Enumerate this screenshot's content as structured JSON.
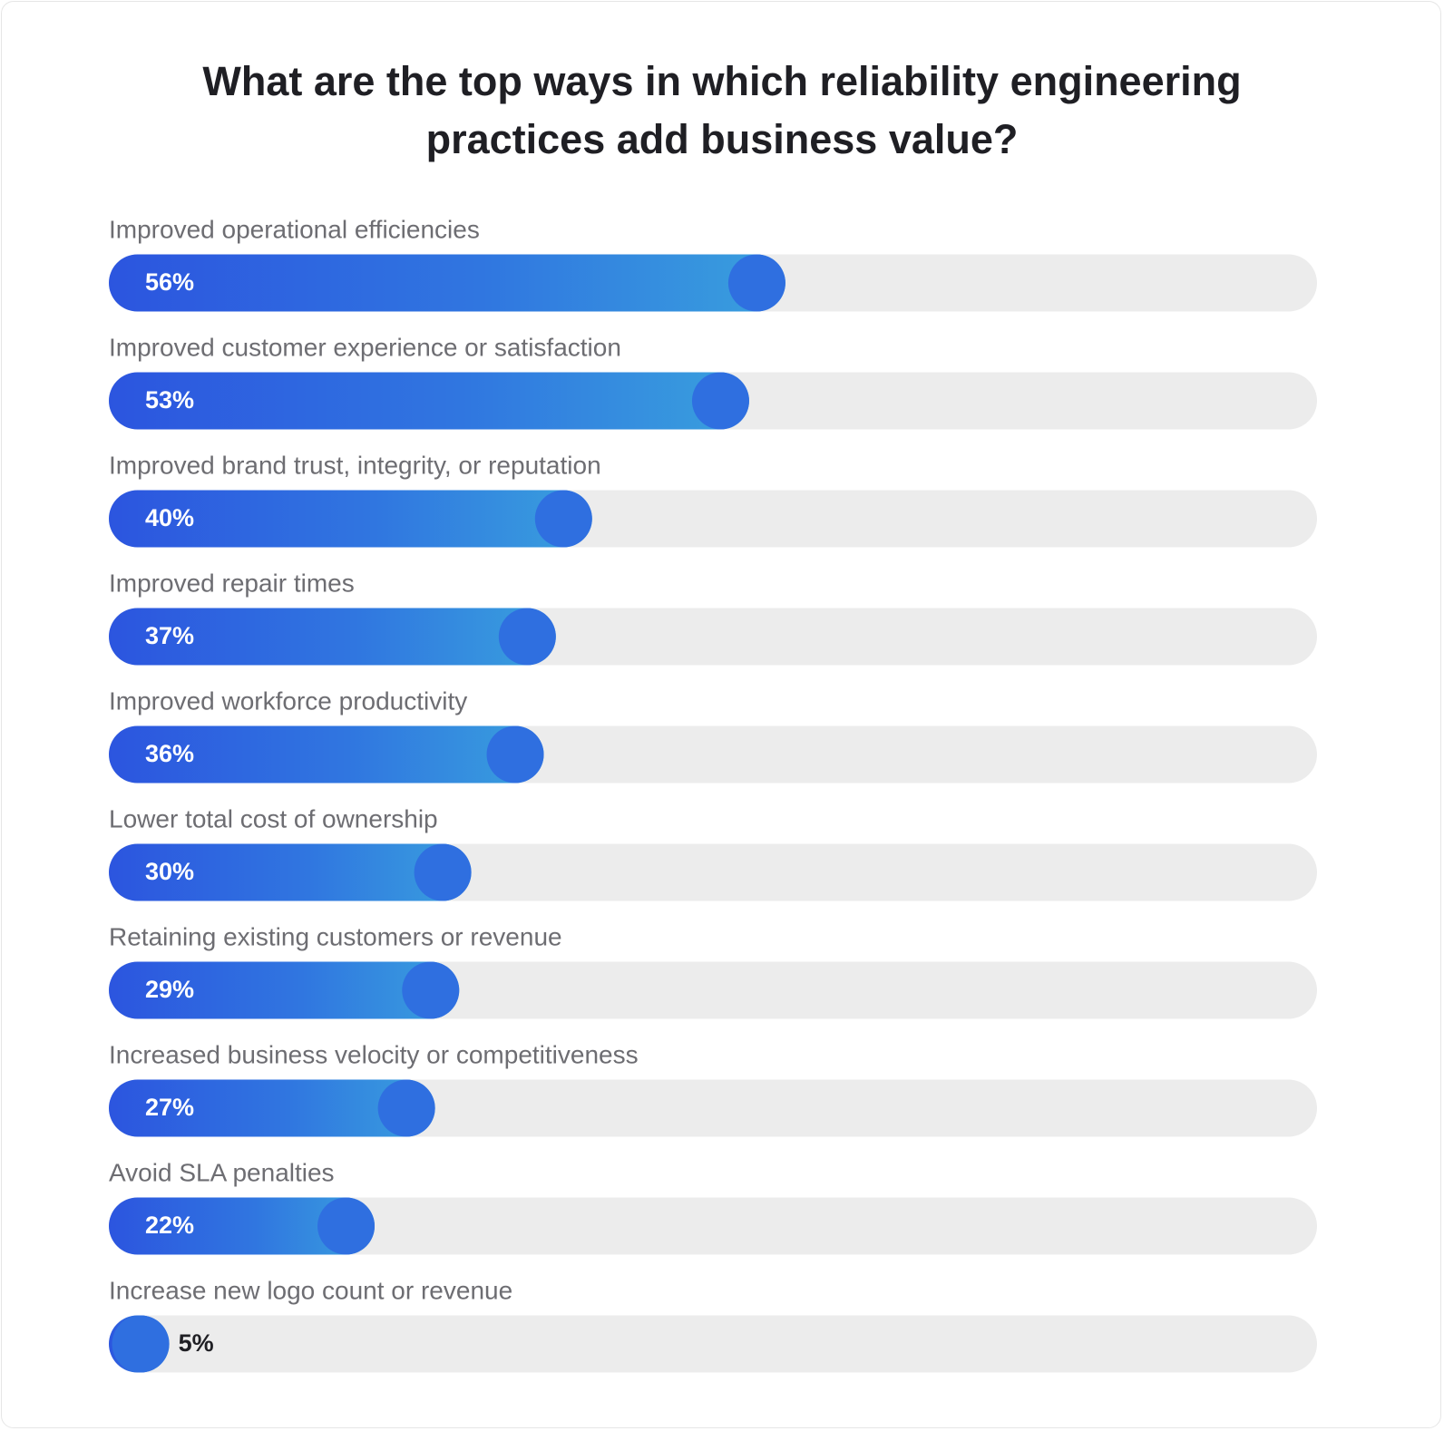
{
  "chart_data": {
    "type": "bar",
    "orientation": "horizontal",
    "title": "What are the top ways in which reliability engineering practices add business value?",
    "categories": [
      "Improved operational efficiencies",
      "Improved customer experience or satisfaction",
      "Improved brand trust, integrity, or reputation",
      "Improved repair times",
      "Improved workforce productivity",
      "Lower total cost of ownership",
      "Retaining existing customers or revenue",
      "Increased business velocity or competitiveness",
      "Avoid SLA penalties",
      "Increase new logo count or revenue"
    ],
    "values": [
      56,
      53,
      40,
      37,
      36,
      30,
      29,
      27,
      22,
      5
    ],
    "value_labels": [
      "56%",
      "53%",
      "40%",
      "37%",
      "36%",
      "30%",
      "29%",
      "27%",
      "22%",
      "5%"
    ],
    "color": "#2f6fe0",
    "xlim": [
      0,
      100
    ]
  }
}
